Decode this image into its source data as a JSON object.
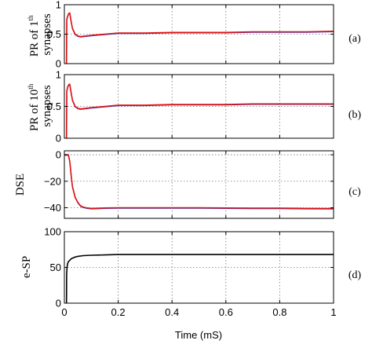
{
  "chart_data": [
    {
      "type": "line",
      "ylabel_line1": "PR of 1",
      "ylabel_sup": "th",
      "ylabel_line2": "synapses",
      "panel_tag": "(a)",
      "xlim": [
        0,
        1
      ],
      "ylim": [
        0,
        1
      ],
      "yticks": [
        "0",
        "0.5",
        "1"
      ],
      "grid": true,
      "series": [
        {
          "color": "#1f3fd6",
          "x": [
            0.008,
            0.009,
            0.012,
            0.016,
            0.02,
            0.025,
            0.03,
            0.04,
            0.05,
            0.06,
            0.08,
            0.1,
            0.15,
            0.2,
            0.3,
            0.4,
            0.5,
            0.6,
            0.7,
            0.8,
            0.9,
            1.0
          ],
          "y": [
            0.0,
            0.75,
            0.8,
            0.85,
            0.86,
            0.72,
            0.6,
            0.5,
            0.47,
            0.46,
            0.47,
            0.48,
            0.5,
            0.52,
            0.52,
            0.53,
            0.53,
            0.53,
            0.54,
            0.54,
            0.54,
            0.55
          ]
        },
        {
          "color": "#e01010",
          "x": [
            0.008,
            0.009,
            0.012,
            0.016,
            0.02,
            0.025,
            0.03,
            0.04,
            0.05,
            0.06,
            0.08,
            0.1,
            0.15,
            0.2,
            0.3,
            0.4,
            0.5,
            0.6,
            0.7,
            0.8,
            0.9,
            1.0
          ],
          "y": [
            0.0,
            0.75,
            0.8,
            0.85,
            0.86,
            0.72,
            0.6,
            0.5,
            0.47,
            0.46,
            0.47,
            0.48,
            0.5,
            0.52,
            0.52,
            0.53,
            0.53,
            0.53,
            0.54,
            0.54,
            0.54,
            0.55
          ]
        }
      ]
    },
    {
      "type": "line",
      "ylabel_line1": "PR of 10",
      "ylabel_sup": "th",
      "ylabel_line2": "synapses",
      "panel_tag": "(b)",
      "xlim": [
        0,
        1
      ],
      "ylim": [
        0,
        1
      ],
      "yticks": [
        "0",
        "0.5",
        "1"
      ],
      "grid": true,
      "series": [
        {
          "color": "#1f3fd6",
          "x": [
            0.008,
            0.009,
            0.012,
            0.016,
            0.02,
            0.025,
            0.03,
            0.04,
            0.05,
            0.06,
            0.08,
            0.1,
            0.15,
            0.2,
            0.3,
            0.4,
            0.5,
            0.6,
            0.7,
            0.8,
            0.9,
            1.0
          ],
          "y": [
            0.0,
            0.74,
            0.8,
            0.84,
            0.85,
            0.72,
            0.6,
            0.5,
            0.47,
            0.46,
            0.47,
            0.48,
            0.5,
            0.52,
            0.52,
            0.53,
            0.53,
            0.53,
            0.54,
            0.54,
            0.54,
            0.54
          ]
        },
        {
          "color": "#e01010",
          "x": [
            0.008,
            0.009,
            0.012,
            0.016,
            0.02,
            0.025,
            0.03,
            0.04,
            0.05,
            0.06,
            0.08,
            0.1,
            0.15,
            0.2,
            0.3,
            0.4,
            0.5,
            0.6,
            0.7,
            0.8,
            0.9,
            1.0
          ],
          "y": [
            0.0,
            0.74,
            0.8,
            0.84,
            0.85,
            0.72,
            0.6,
            0.5,
            0.47,
            0.46,
            0.47,
            0.48,
            0.5,
            0.52,
            0.52,
            0.53,
            0.53,
            0.53,
            0.54,
            0.54,
            0.54,
            0.54
          ]
        }
      ]
    },
    {
      "type": "line",
      "ylabel_line1": "DSE",
      "ylabel_sup": "",
      "ylabel_line2": "",
      "panel_tag": "(c)",
      "xlim": [
        0,
        1
      ],
      "ylim": [
        -48,
        3
      ],
      "yticks": [
        "0",
        "−20",
        "−40"
      ],
      "yticks_values": [
        0,
        -20,
        -40
      ],
      "grid": true,
      "series": [
        {
          "color": "#1f3fd6",
          "x": [
            0.0,
            0.015,
            0.02,
            0.025,
            0.03,
            0.04,
            0.05,
            0.06,
            0.07,
            0.08,
            0.1,
            0.15,
            0.2,
            0.3,
            0.4,
            0.5,
            0.6,
            0.7,
            0.8,
            0.9,
            1.0
          ],
          "y": [
            0,
            0,
            -5,
            -15,
            -24,
            -32,
            -36,
            -38.5,
            -39.5,
            -40,
            -40.5,
            -40.2,
            -40,
            -40,
            -40,
            -40,
            -40.2,
            -40.3,
            -40.3,
            -40.5,
            -40.6
          ]
        },
        {
          "color": "#e01010",
          "x": [
            0.0,
            0.015,
            0.02,
            0.025,
            0.03,
            0.04,
            0.05,
            0.06,
            0.07,
            0.08,
            0.1,
            0.15,
            0.2,
            0.3,
            0.4,
            0.5,
            0.6,
            0.7,
            0.8,
            0.9,
            1.0
          ],
          "y": [
            0,
            0,
            -5,
            -15,
            -24,
            -32,
            -36,
            -38.5,
            -39.5,
            -40,
            -40.5,
            -40.2,
            -40,
            -40,
            -40,
            -40,
            -40.2,
            -40.3,
            -40.3,
            -40.5,
            -40.6
          ]
        }
      ]
    },
    {
      "type": "line",
      "ylabel_line1": "e-SP",
      "ylabel_sup": "",
      "ylabel_line2": "",
      "panel_tag": "(d)",
      "xlim": [
        0,
        1
      ],
      "ylim": [
        0,
        100
      ],
      "yticks": [
        "0",
        "50",
        "100"
      ],
      "yticks_values": [
        0,
        50,
        100
      ],
      "grid": true,
      "xlabel": "Time (mS)",
      "xticks": [
        "0",
        "0.2",
        "0.4",
        "0.6",
        "0.8",
        "1"
      ],
      "series": [
        {
          "color": "#000000",
          "x": [
            0.008,
            0.0085,
            0.01,
            0.012,
            0.015,
            0.02,
            0.025,
            0.03,
            0.04,
            0.05,
            0.07,
            0.1,
            0.15,
            0.2,
            0.3,
            0.4,
            0.6,
            0.8,
            1.0
          ],
          "y": [
            0,
            40,
            50,
            55,
            58,
            60,
            62,
            63,
            64.5,
            65.5,
            66.5,
            67,
            67.5,
            68,
            68,
            68,
            68,
            68,
            68
          ]
        }
      ]
    }
  ]
}
